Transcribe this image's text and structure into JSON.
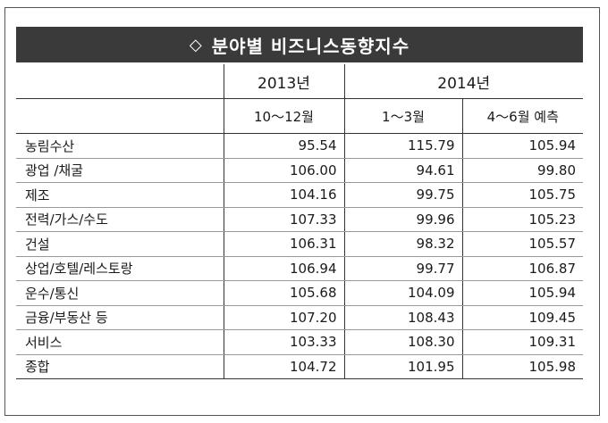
{
  "title": "분야별 비즈니스동향지수",
  "title_icon": "hollow-diamond-icon",
  "years": {
    "y2013": "2013년",
    "y2014": "2014년"
  },
  "periods": {
    "p1": "10～12월",
    "p2": "1～3월",
    "p3": "4～6월 예측"
  },
  "rows": [
    {
      "name": "농림수산",
      "v1": "95.54",
      "v2": "115.79",
      "v3": "105.94"
    },
    {
      "name": "광업 /채굴",
      "v1": "106.00",
      "v2": "94.61",
      "v3": "99.80"
    },
    {
      "name": "제조",
      "v1": "104.16",
      "v2": "99.75",
      "v3": "105.75"
    },
    {
      "name": "전력/가스/수도",
      "v1": "107.33",
      "v2": "99.96",
      "v3": "105.23"
    },
    {
      "name": "건설",
      "v1": "106.31",
      "v2": "98.32",
      "v3": "105.57"
    },
    {
      "name": "상업/호텔/레스토랑",
      "v1": "106.94",
      "v2": "99.77",
      "v3": "106.87"
    },
    {
      "name": "운수/통신",
      "v1": "105.68",
      "v2": "104.09",
      "v3": "105.94"
    },
    {
      "name": "금융/부동산 등",
      "v1": "107.20",
      "v2": "108.43",
      "v3": "109.45"
    },
    {
      "name": "서비스",
      "v1": "103.33",
      "v2": "108.30",
      "v3": "109.31"
    },
    {
      "name": "종합",
      "v1": "104.72",
      "v2": "101.95",
      "v3": "105.98"
    }
  ]
}
